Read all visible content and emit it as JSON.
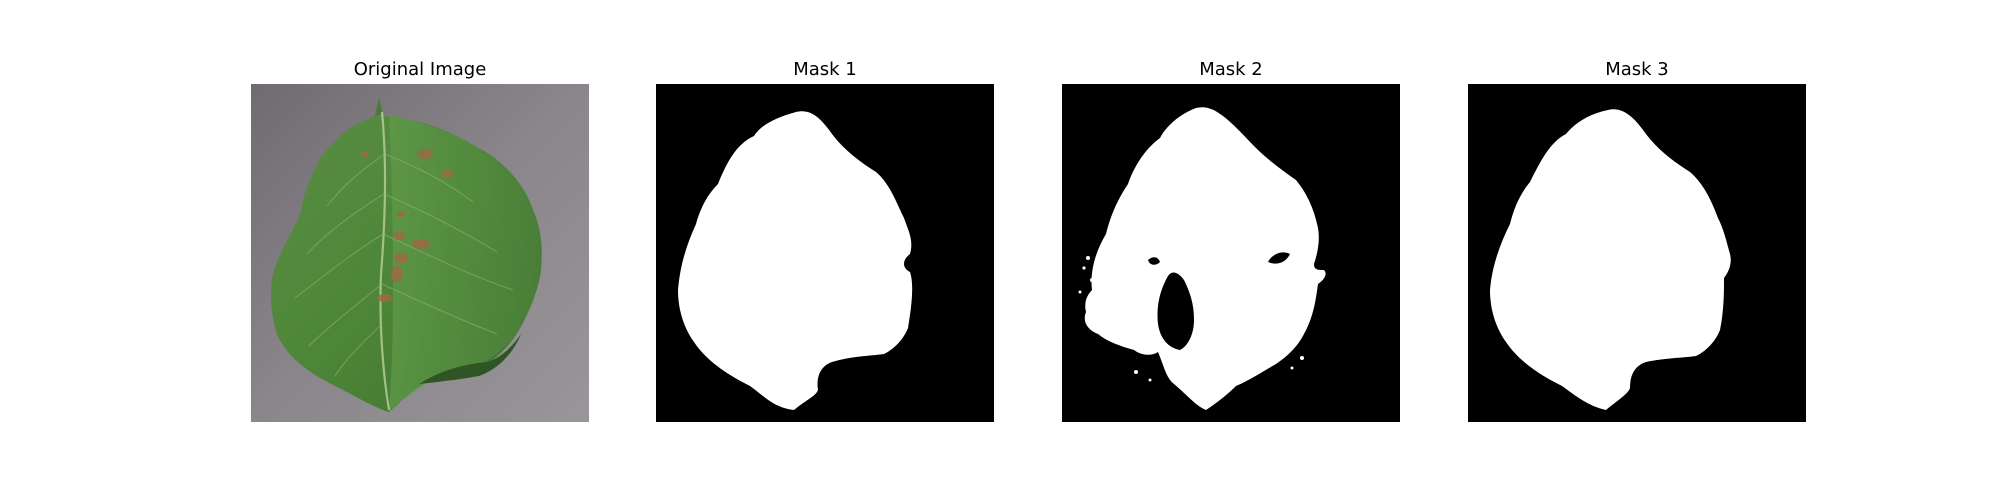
{
  "figure": {
    "panels": [
      {
        "title": "Original Image"
      },
      {
        "title": "Mask 1"
      },
      {
        "title": "Mask 2"
      },
      {
        "title": "Mask 3"
      }
    ]
  },
  "colors": {
    "background": "#ffffff",
    "mask_background": "#000000",
    "mask_foreground": "#ffffff",
    "leaf_green": "#4f8a3c",
    "surface_gray": "#858286",
    "lesion_brown": "#9a6a45"
  }
}
